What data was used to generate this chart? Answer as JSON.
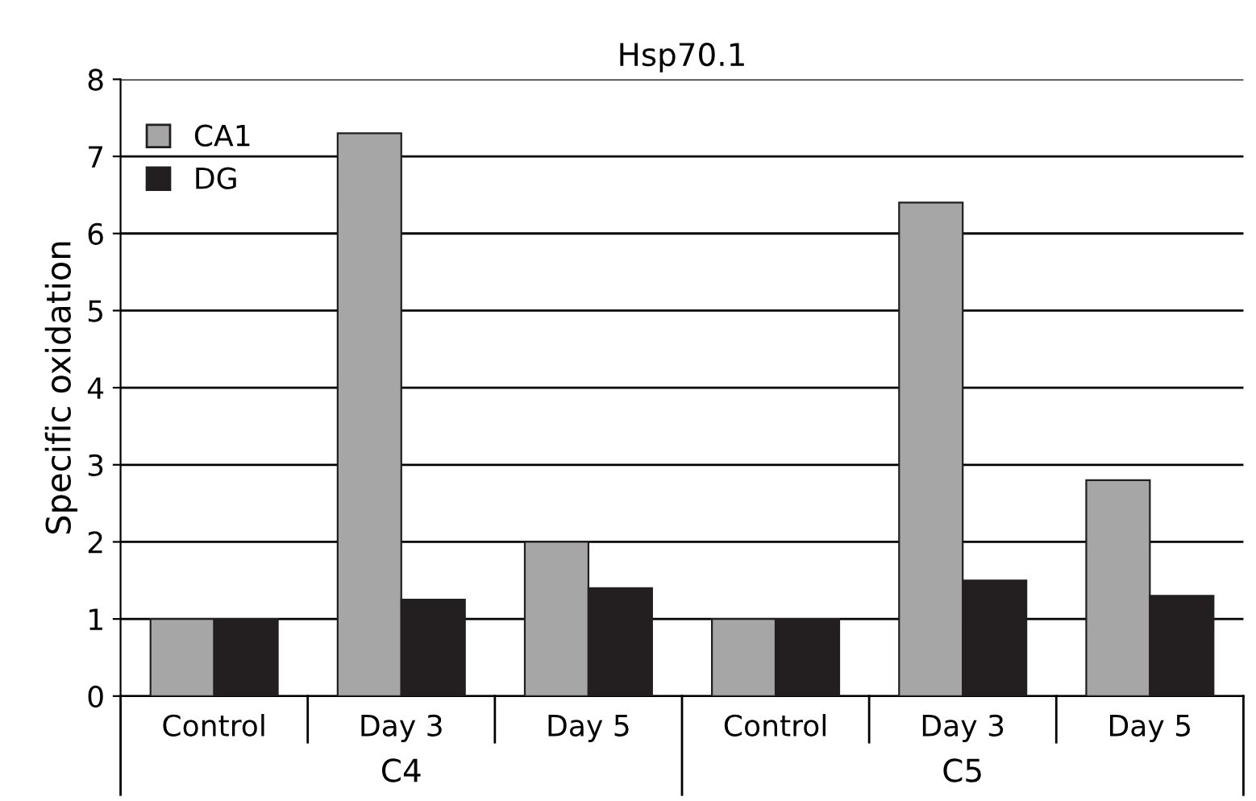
{
  "chart_data": {
    "type": "bar",
    "title": "Hsp70.1",
    "ylabel": "Specific oxidation",
    "categories": [
      "Control",
      "Day 3",
      "Day 5",
      "Control",
      "Day 3",
      "Day 5"
    ],
    "series": [
      {
        "name": "CA1",
        "color": "#a6a6a6",
        "values": [
          1.0,
          7.3,
          2.0,
          1.0,
          6.4,
          2.8
        ]
      },
      {
        "name": "DG",
        "color": "#231f20",
        "values": [
          1.0,
          1.25,
          1.4,
          1.0,
          1.5,
          1.3
        ]
      }
    ],
    "annotations": [
      "C4",
      "C5"
    ],
    "ylim": [
      0,
      8
    ],
    "yticks": [
      0,
      1,
      2,
      3,
      4,
      5,
      6,
      7,
      8
    ],
    "grid": "y",
    "legend": "top left"
  }
}
